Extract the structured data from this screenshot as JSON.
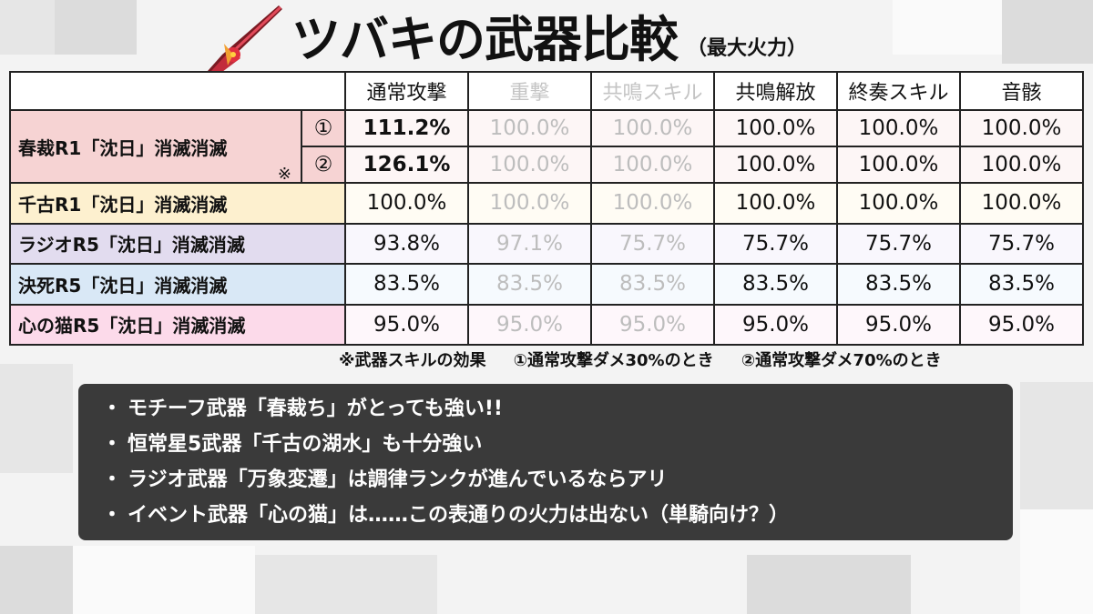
{
  "title": {
    "main": "ツバキの武器比較",
    "sub": "（最大火力）"
  },
  "headers": [
    "通常攻撃",
    "重撃",
    "共鳴スキル",
    "共鳴解放",
    "終奏スキル",
    "音骸"
  ],
  "rows": [
    {
      "name": "春裁R1「沈日」消滅消滅",
      "note_mark": "※",
      "sub": "①",
      "values": [
        "111.2%",
        "100.0%",
        "100.0%",
        "100.0%",
        "100.0%",
        "100.0%"
      ]
    },
    {
      "sub": "②",
      "values": [
        "126.1%",
        "100.0%",
        "100.0%",
        "100.0%",
        "100.0%",
        "100.0%"
      ]
    },
    {
      "name": "千古R1「沈日」消滅消滅",
      "values": [
        "100.0%",
        "100.0%",
        "100.0%",
        "100.0%",
        "100.0%",
        "100.0%"
      ]
    },
    {
      "name": "ラジオR5「沈日」消滅消滅",
      "values": [
        "93.8%",
        "97.1%",
        "75.7%",
        "75.7%",
        "75.7%",
        "75.7%"
      ]
    },
    {
      "name": "決死R5「沈日」消滅消滅",
      "values": [
        "83.5%",
        "83.5%",
        "83.5%",
        "83.5%",
        "83.5%",
        "83.5%"
      ]
    },
    {
      "name": "心の猫R5「沈日」消滅消滅",
      "values": [
        "95.0%",
        "95.0%",
        "95.0%",
        "95.0%",
        "95.0%",
        "95.0%"
      ]
    }
  ],
  "footnote": [
    "※武器スキルの効果",
    "①通常攻撃ダメ30%のとき",
    "②通常攻撃ダメ70%のとき"
  ],
  "bullets": [
    "モチーフ武器「春裁ち」がとっても強い!!",
    "恒常星5武器「千古の湖水」も十分強い",
    "ラジオ武器「万象変遷」は調律ランクが進んでいるならアリ",
    "イベント武器「心の猫」は……この表通りの火力は出ない（単騎向け？）"
  ],
  "bullet_marker": "・",
  "colors": {
    "row_chunsai": "#f6d3d3",
    "row_senko": "#fdf0cf",
    "row_radio": "#e2dcef",
    "row_kesshi": "#d9e8f6",
    "row_kokoro": "#fcdaea",
    "panel": "#3a3a3a"
  },
  "icons": {
    "weapon": "sword-icon"
  }
}
